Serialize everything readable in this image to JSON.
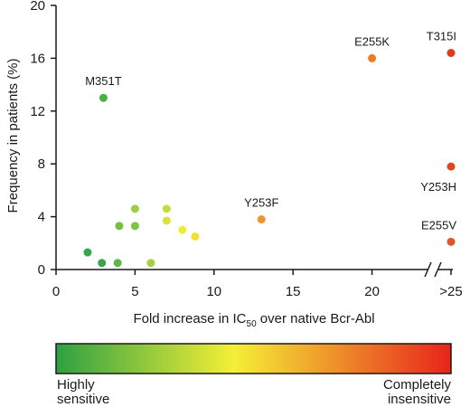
{
  "chart_data": {
    "type": "scatter",
    "xlabel_main": "Fold increase in IC",
    "xlabel_sub": "50",
    "xlabel_tail": " over native Bcr-Abl",
    "ylabel": "Frequency in patients (%)",
    "xlim": [
      0,
      25
    ],
    "ylim": [
      0,
      20
    ],
    "x_ticks": [
      "0",
      "5",
      "10",
      "15",
      "20",
      ">25"
    ],
    "y_ticks": [
      "0",
      "4",
      "8",
      "12",
      "16",
      "20"
    ],
    "axis_break": true,
    "points": [
      {
        "x": 2.0,
        "y": 1.3,
        "color": "#37a64a",
        "label": ""
      },
      {
        "x": 2.9,
        "y": 0.5,
        "color": "#37a64a",
        "label": ""
      },
      {
        "x": 3.9,
        "y": 0.5,
        "color": "#5cb848",
        "label": ""
      },
      {
        "x": 3.0,
        "y": 13.0,
        "color": "#4aae46",
        "label": "M351T"
      },
      {
        "x": 4.0,
        "y": 3.3,
        "color": "#72bf45",
        "label": ""
      },
      {
        "x": 5.0,
        "y": 3.3,
        "color": "#7dc344",
        "label": ""
      },
      {
        "x": 5.0,
        "y": 4.6,
        "color": "#9dcd42",
        "label": ""
      },
      {
        "x": 6.0,
        "y": 0.5,
        "color": "#a4d041",
        "label": ""
      },
      {
        "x": 7.0,
        "y": 4.6,
        "color": "#c3dc3f",
        "label": ""
      },
      {
        "x": 7.0,
        "y": 3.7,
        "color": "#d8e33c",
        "label": ""
      },
      {
        "x": 8.0,
        "y": 3.0,
        "color": "#efe937",
        "label": ""
      },
      {
        "x": 8.8,
        "y": 2.5,
        "color": "#f3e032",
        "label": ""
      },
      {
        "x": 13.0,
        "y": 3.8,
        "color": "#f0952c",
        "label": "Y253F"
      },
      {
        "x": 20.0,
        "y": 16.0,
        "color": "#ec7b24",
        "label": "E255K"
      },
      {
        "x": 25.0,
        "y": 16.4,
        "color": "#e03a1c",
        "label": "T315I"
      },
      {
        "x": 25.0,
        "y": 7.8,
        "color": "#e2461e",
        "label": "Y253H"
      },
      {
        "x": 25.0,
        "y": 2.1,
        "color": "#e55520",
        "label": "E255V"
      }
    ],
    "colorbar": {
      "stops": [
        "#2ea043",
        "#f5ef36",
        "#e8241c"
      ],
      "left_label_line1": "Highly",
      "left_label_line2": "sensitive",
      "right_label_line1": "Completely",
      "right_label_line2": "insensitive"
    }
  }
}
